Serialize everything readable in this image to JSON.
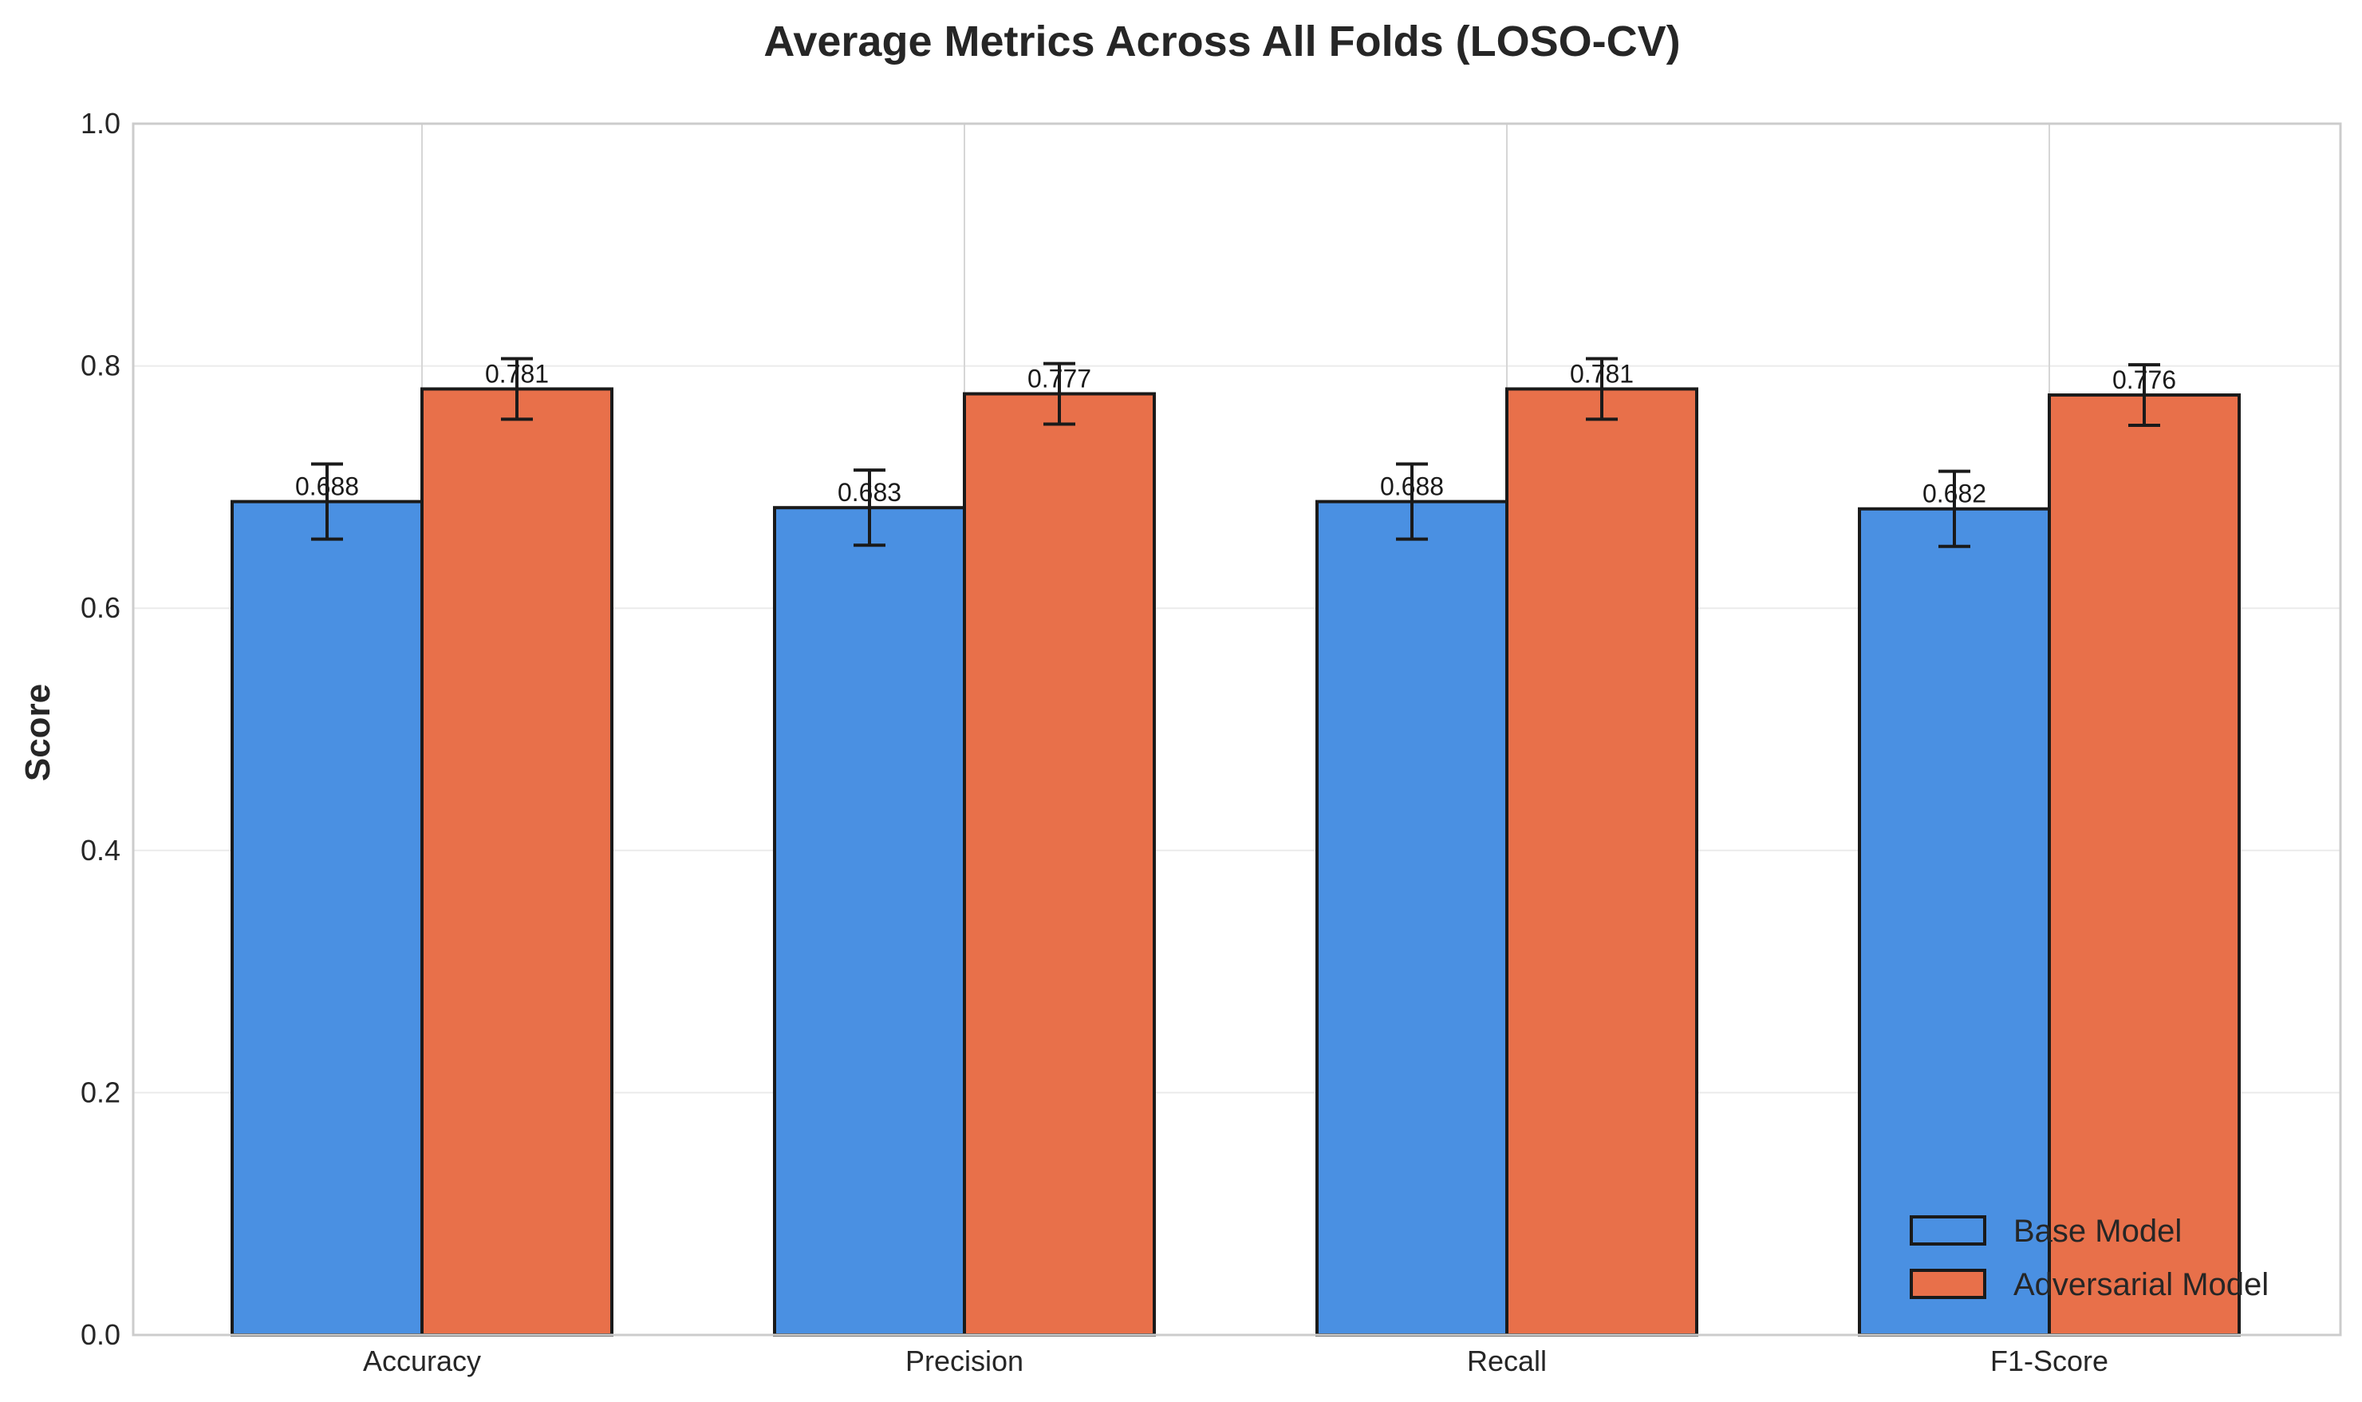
{
  "chart_data": {
    "type": "bar",
    "title": "Average Metrics Across All Folds (LOSO-CV)",
    "xlabel": "",
    "ylabel": "Score",
    "categories": [
      "Accuracy",
      "Precision",
      "Recall",
      "F1-Score"
    ],
    "ylim": [
      0,
      1.0
    ],
    "yticks": [
      0.0,
      0.2,
      0.4,
      0.6,
      0.8,
      1.0
    ],
    "ytick_labels": [
      "0.0",
      "0.2",
      "0.4",
      "0.6",
      "0.8",
      "1.0"
    ],
    "grid": true,
    "legend_position": "bottom-right",
    "series": [
      {
        "name": "Base Model",
        "color": "#4a90e2",
        "values": [
          0.688,
          0.683,
          0.688,
          0.682
        ],
        "errors": [
          0.031,
          0.031,
          0.031,
          0.031
        ],
        "value_labels": [
          "0.688",
          "0.683",
          "0.688",
          "0.682"
        ]
      },
      {
        "name": "Adversarial Model",
        "color": "#e8704a",
        "values": [
          0.781,
          0.777,
          0.781,
          0.776
        ],
        "errors": [
          0.025,
          0.025,
          0.025,
          0.025
        ],
        "value_labels": [
          "0.781",
          "0.777",
          "0.781",
          "0.776"
        ]
      }
    ]
  }
}
